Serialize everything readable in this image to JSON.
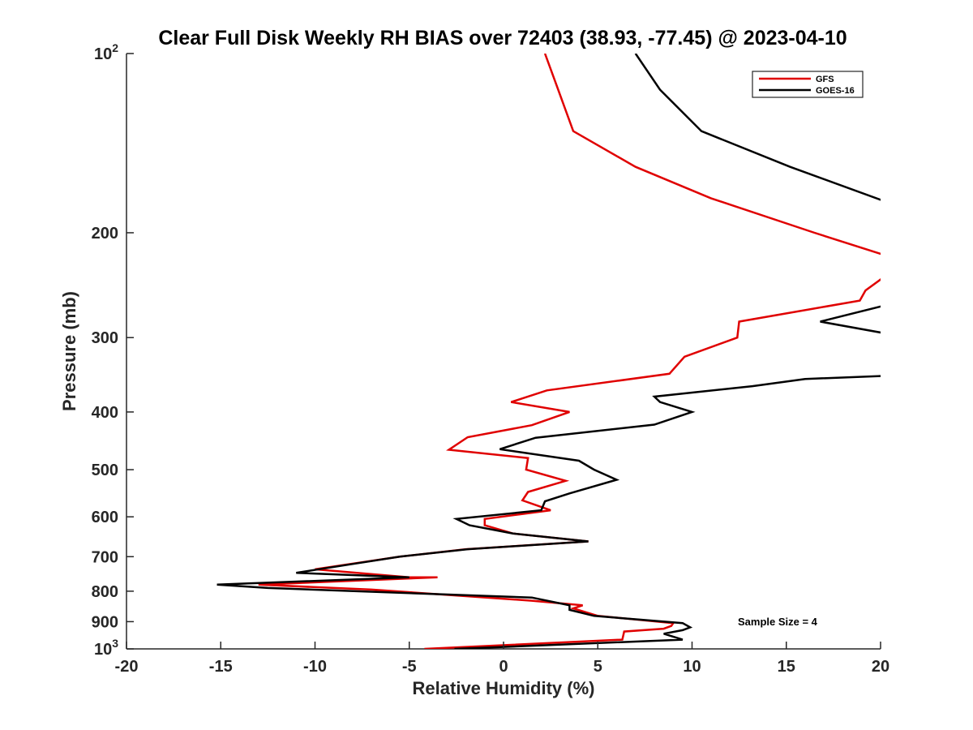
{
  "chart_data": {
    "type": "line",
    "title": "Clear Full Disk Weekly RH BIAS over 72403 (38.93, -77.45) @ 2023-04-10",
    "xlabel": "Relative Humidity (%)",
    "ylabel": "Pressure (mb)",
    "xlim": [
      -20,
      20
    ],
    "ylim": [
      100,
      1000
    ],
    "yscale": "log",
    "y_reversed": true,
    "grid": false,
    "legend_position": "top-right",
    "x_ticks": [
      -20,
      -15,
      -10,
      -5,
      0,
      5,
      10,
      15,
      20
    ],
    "x_tick_labels": [
      "-20",
      "-15",
      "-10",
      "-5",
      "0",
      "5",
      "10",
      "15",
      "20"
    ],
    "y_ticks": [
      100,
      200,
      300,
      400,
      500,
      600,
      700,
      800,
      900,
      1000
    ],
    "y_tick_labels": [
      {
        "base": "10",
        "exp": "2"
      },
      {
        "base": "200",
        "exp": ""
      },
      {
        "base": "300",
        "exp": ""
      },
      {
        "base": "400",
        "exp": ""
      },
      {
        "base": "500",
        "exp": ""
      },
      {
        "base": "600",
        "exp": ""
      },
      {
        "base": "700",
        "exp": ""
      },
      {
        "base": "800",
        "exp": ""
      },
      {
        "base": "900",
        "exp": ""
      },
      {
        "base": "10",
        "exp": "3"
      }
    ],
    "annotation": "Sample Size = 4",
    "series": [
      {
        "name": "GFS",
        "color": "#e00000",
        "points": [
          [
            2.2,
            100
          ],
          [
            2.9,
            115
          ],
          [
            3.7,
            135
          ],
          [
            7.0,
            155
          ],
          [
            11.0,
            175
          ],
          [
            16.5,
            200
          ],
          [
            20.2,
            218
          ],
          [
            20.2,
            237
          ],
          [
            19.2,
            250
          ],
          [
            18.9,
            260
          ],
          [
            12.5,
            282
          ],
          [
            12.4,
            300
          ],
          [
            9.6,
            323
          ],
          [
            8.8,
            345
          ],
          [
            2.3,
            368
          ],
          [
            0.4,
            385
          ],
          [
            3.5,
            400
          ],
          [
            1.5,
            421
          ],
          [
            -1.9,
            441
          ],
          [
            -2.9,
            463
          ],
          [
            1.3,
            478
          ],
          [
            1.2,
            500
          ],
          [
            3.3,
            522
          ],
          [
            1.3,
            545
          ],
          [
            1.0,
            563
          ],
          [
            2.5,
            585
          ],
          [
            -1.0,
            605
          ],
          [
            -1.0,
            620
          ],
          [
            0.5,
            640
          ],
          [
            4.5,
            660
          ],
          [
            -2.0,
            680
          ],
          [
            -5.5,
            700
          ],
          [
            -10.0,
            735
          ],
          [
            -5.0,
            758
          ],
          [
            -3.5,
            758
          ],
          [
            -13.0,
            780
          ],
          [
            -7.0,
            795
          ],
          [
            1.5,
            830
          ],
          [
            4.2,
            845
          ],
          [
            3.7,
            855
          ],
          [
            5.0,
            880
          ],
          [
            9.0,
            905
          ],
          [
            8.9,
            915
          ],
          [
            8.5,
            925
          ],
          [
            6.4,
            935
          ],
          [
            6.3,
            965
          ],
          [
            -4.2,
            1000
          ]
        ]
      },
      {
        "name": "GOES-16",
        "color": "#000000",
        "points": [
          [
            7.0,
            100
          ],
          [
            8.3,
            115
          ],
          [
            10.5,
            135
          ],
          [
            15.2,
            155
          ],
          [
            20.2,
            177
          ],
          [
            20.2,
            265
          ],
          [
            16.8,
            282
          ],
          [
            20.2,
            295
          ],
          [
            20.2,
            348
          ],
          [
            16.0,
            352
          ],
          [
            13.2,
            362
          ],
          [
            8.0,
            377
          ],
          [
            8.3,
            385
          ],
          [
            10.0,
            400
          ],
          [
            8.0,
            420
          ],
          [
            1.7,
            442
          ],
          [
            -0.2,
            462
          ],
          [
            4.0,
            483
          ],
          [
            4.8,
            500
          ],
          [
            6.0,
            520
          ],
          [
            3.5,
            548
          ],
          [
            2.2,
            565
          ],
          [
            2.0,
            585
          ],
          [
            -2.5,
            605
          ],
          [
            -1.8,
            620
          ],
          [
            0.5,
            640
          ],
          [
            4.5,
            660
          ],
          [
            -1.9,
            680
          ],
          [
            -5.5,
            700
          ],
          [
            -8.0,
            720
          ],
          [
            -11.0,
            745
          ],
          [
            -5.0,
            758
          ],
          [
            -15.2,
            780
          ],
          [
            -12.5,
            790
          ],
          [
            1.5,
            820
          ],
          [
            3.5,
            845
          ],
          [
            3.5,
            860
          ],
          [
            4.8,
            880
          ],
          [
            9.5,
            905
          ],
          [
            9.9,
            920
          ],
          [
            9.5,
            930
          ],
          [
            8.5,
            943
          ],
          [
            9.5,
            965
          ],
          [
            -2.6,
            1000
          ]
        ]
      }
    ]
  }
}
